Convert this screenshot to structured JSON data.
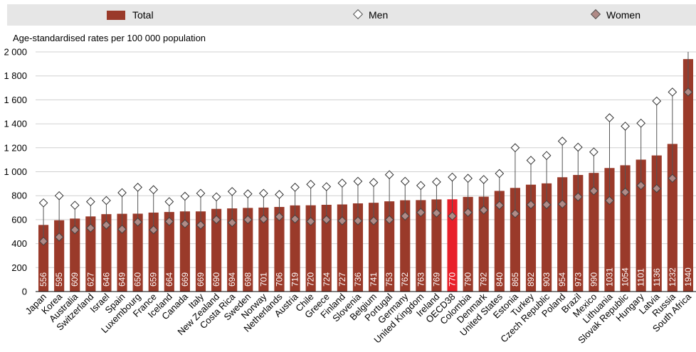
{
  "legend": {
    "total_label": "Total",
    "men_label": "Men",
    "women_label": "Women"
  },
  "colors": {
    "total": "#9a3a2a",
    "highlight": "#e8202a",
    "women_marker": "#b08a86",
    "men_marker": "#ffffff",
    "legend_bg": "#e6e6e6",
    "grid": "#d0d0d0"
  },
  "chart_data": {
    "type": "bar",
    "ylabel": "Age-standardised rates per 100 000 population",
    "ylim": [
      0,
      2000
    ],
    "yticks": [
      0,
      200,
      400,
      600,
      800,
      1000,
      1200,
      1400,
      1600,
      1800,
      2000
    ],
    "ytick_labels": [
      "0",
      "200",
      "400",
      "600",
      "800",
      "1 000",
      "1 200",
      "1 400",
      "1 600",
      "1 800",
      "2 000"
    ],
    "grid": true,
    "legend_position": "top",
    "highlight_category": "OECD38",
    "categories": [
      "Japan",
      "Korea",
      "Australia",
      "Switzerland",
      "Israel",
      "Spain",
      "Luxembourg",
      "France",
      "Iceland",
      "Canada",
      "Italy",
      "New Zealand",
      "Costa Rica",
      "Sweden",
      "Norway",
      "Netherlands",
      "Austria",
      "Chile",
      "Greece",
      "Finland",
      "Slovenia",
      "Belgium",
      "Portugal",
      "Germany",
      "United Kingdom",
      "Ireland",
      "OECD38",
      "Colombia",
      "Denmark",
      "United States",
      "Estonia",
      "Turkey",
      "Czech Republic",
      "Poland",
      "Brazil",
      "Mexico",
      "Lithuania",
      "Slovak Republic",
      "Hungary",
      "Latvia",
      "Russia",
      "South Africa"
    ],
    "series": [
      {
        "name": "Total",
        "values": [
          556,
          595,
          609,
          627,
          646,
          649,
          650,
          659,
          664,
          669,
          669,
          690,
          694,
          698,
          701,
          706,
          719,
          720,
          724,
          727,
          736,
          741,
          753,
          762,
          763,
          769,
          770,
          790,
          792,
          840,
          865,
          892,
          903,
          954,
          973,
          990,
          1031,
          1054,
          1101,
          1136,
          1232,
          1940
        ]
      },
      {
        "name": "Men",
        "values": [
          740,
          800,
          720,
          750,
          760,
          825,
          870,
          850,
          750,
          795,
          820,
          790,
          835,
          815,
          820,
          810,
          870,
          895,
          875,
          905,
          920,
          910,
          975,
          920,
          885,
          915,
          955,
          945,
          935,
          985,
          1200,
          1095,
          1135,
          1255,
          1205,
          1165,
          1450,
          1380,
          1405,
          1590,
          1665,
          2050
        ]
      },
      {
        "name": "Women",
        "values": [
          420,
          455,
          515,
          530,
          555,
          520,
          580,
          515,
          585,
          565,
          555,
          600,
          575,
          600,
          605,
          625,
          605,
          585,
          600,
          590,
          590,
          590,
          600,
          630,
          660,
          655,
          630,
          660,
          680,
          720,
          650,
          725,
          725,
          730,
          790,
          840,
          760,
          830,
          885,
          860,
          945,
          1665
        ]
      }
    ]
  }
}
